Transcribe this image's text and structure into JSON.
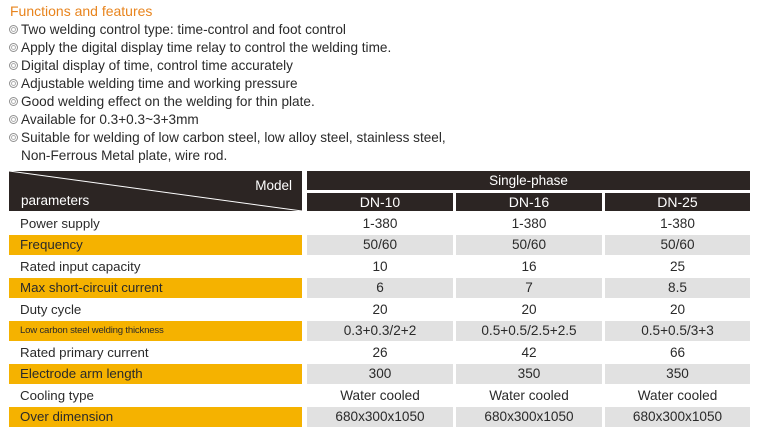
{
  "features": {
    "title": "Functions and features",
    "items": [
      {
        "text": "Two welding control type: time-control and foot control"
      },
      {
        "text": "Apply the digital display time relay to control the welding time."
      },
      {
        "text": "Digital display of time, control time accurately"
      },
      {
        "text": "Adjustable welding time and working pressure"
      },
      {
        "text": "Good welding effect on the welding for thin plate."
      },
      {
        "text": "Available for 0.3+0.3~3+3mm"
      },
      {
        "text": "Suitable for welding of low carbon steel, low alloy steel, stainless steel,",
        "continuation": "Non-Ferrous Metal plate, wire rod."
      }
    ]
  },
  "table": {
    "model_label": "Model",
    "parameters_label": "parameters",
    "phase_label": "Single-phase",
    "models": [
      "DN-10",
      "DN-16",
      "DN-25"
    ],
    "rows": [
      {
        "label": "Power supply",
        "values": [
          "1-380",
          "1-380",
          "1-380"
        ]
      },
      {
        "label": "Frequency",
        "values": [
          "50/60",
          "50/60",
          "50/60"
        ]
      },
      {
        "label": "Rated input capacity",
        "values": [
          "10",
          "16",
          "25"
        ]
      },
      {
        "label": "Max short-circuit current",
        "values": [
          "6",
          "7",
          "8.5"
        ]
      },
      {
        "label": "Duty cycle",
        "values": [
          "20",
          "20",
          "20"
        ]
      },
      {
        "label": "Low carbon steel welding thickness",
        "values": [
          "0.3+0.3/2+2",
          "0.5+0.5/2.5+2.5",
          "0.5+0.5/3+3"
        ]
      },
      {
        "label": "Rated primary current",
        "values": [
          "26",
          "42",
          "66"
        ]
      },
      {
        "label": "Electrode arm length",
        "values": [
          "300",
          "350",
          "350"
        ]
      },
      {
        "label": "Cooling type",
        "values": [
          "Water cooled",
          "Water cooled",
          "Water cooled"
        ]
      },
      {
        "label": "Over dimension",
        "values": [
          "680x300x1050",
          "680x300x1050",
          "680x300x1050"
        ]
      }
    ],
    "colors": {
      "header_bg": "#2c2523",
      "highlight": "#f5b200",
      "shade": "#e1e1e1"
    }
  }
}
